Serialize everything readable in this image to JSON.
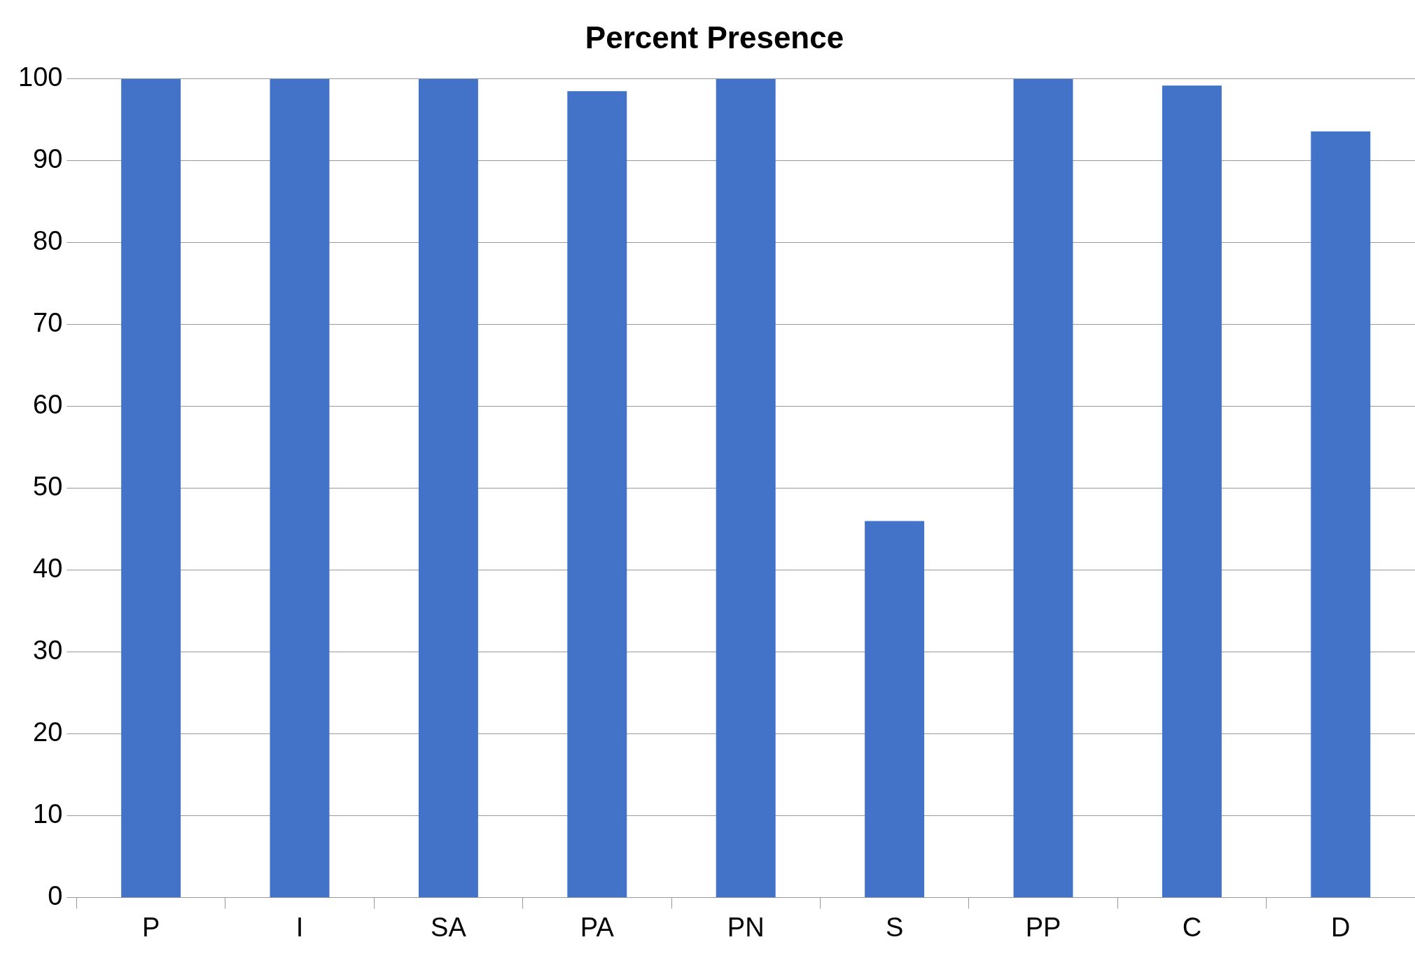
{
  "chart_data": {
    "type": "bar",
    "title": "Percent Presence",
    "categories": [
      "P",
      "I",
      "SA",
      "PA",
      "PN",
      "S",
      "PP",
      "C",
      "D"
    ],
    "values": [
      100,
      100,
      100,
      98.5,
      100,
      46,
      100,
      99.2,
      93.6
    ],
    "color": "#4273c8",
    "ylim": [
      0,
      100
    ],
    "yticks": [
      0,
      10,
      20,
      30,
      40,
      50,
      60,
      70,
      80,
      90,
      100
    ],
    "grid": "y",
    "legend": false
  }
}
